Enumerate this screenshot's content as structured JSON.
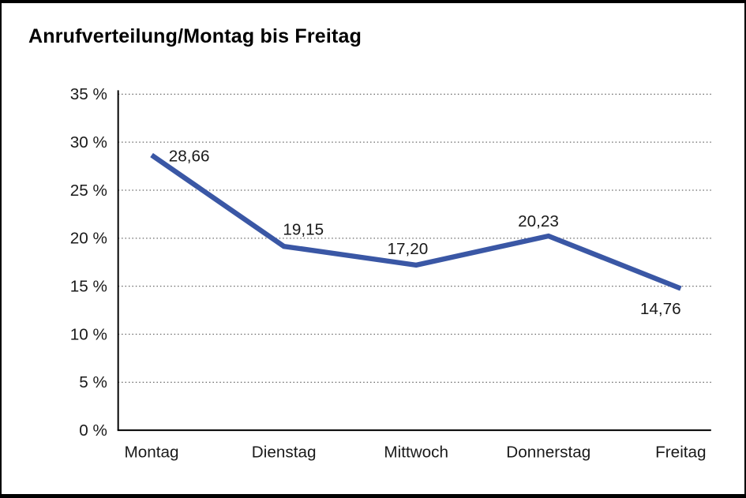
{
  "title": "Anrufverteilung/Montag bis Freitag",
  "colors": {
    "line": "#3a57a5",
    "gridline": "#666666",
    "axis": "#000000",
    "text": "#1a1a1a",
    "background": "#ffffff",
    "frame": "#000000"
  },
  "chart_data": {
    "type": "line",
    "title": "Anrufverteilung/Montag bis Freitag",
    "categories": [
      "Montag",
      "Dienstag",
      "Mittwoch",
      "Donnerstag",
      "Freitag"
    ],
    "series": [
      {
        "name": "Anrufverteilung",
        "values": [
          28.66,
          19.15,
          17.2,
          20.23,
          14.76
        ],
        "point_labels": [
          "28,66",
          "19,15",
          "17,20",
          "20,23",
          "14,76"
        ]
      }
    ],
    "xlabel": "",
    "ylabel": "",
    "ylim": [
      0,
      35
    ],
    "yticks": [
      0,
      5,
      10,
      15,
      20,
      25,
      30,
      35
    ],
    "ytick_labels": [
      "0 %",
      "5 %",
      "10 %",
      "15 %",
      "20 %",
      "25 %",
      "30 %",
      "35 %"
    ],
    "grid": "dotted-horizontal",
    "legend_position": "none",
    "number_format": "de-DE comma decimals"
  }
}
